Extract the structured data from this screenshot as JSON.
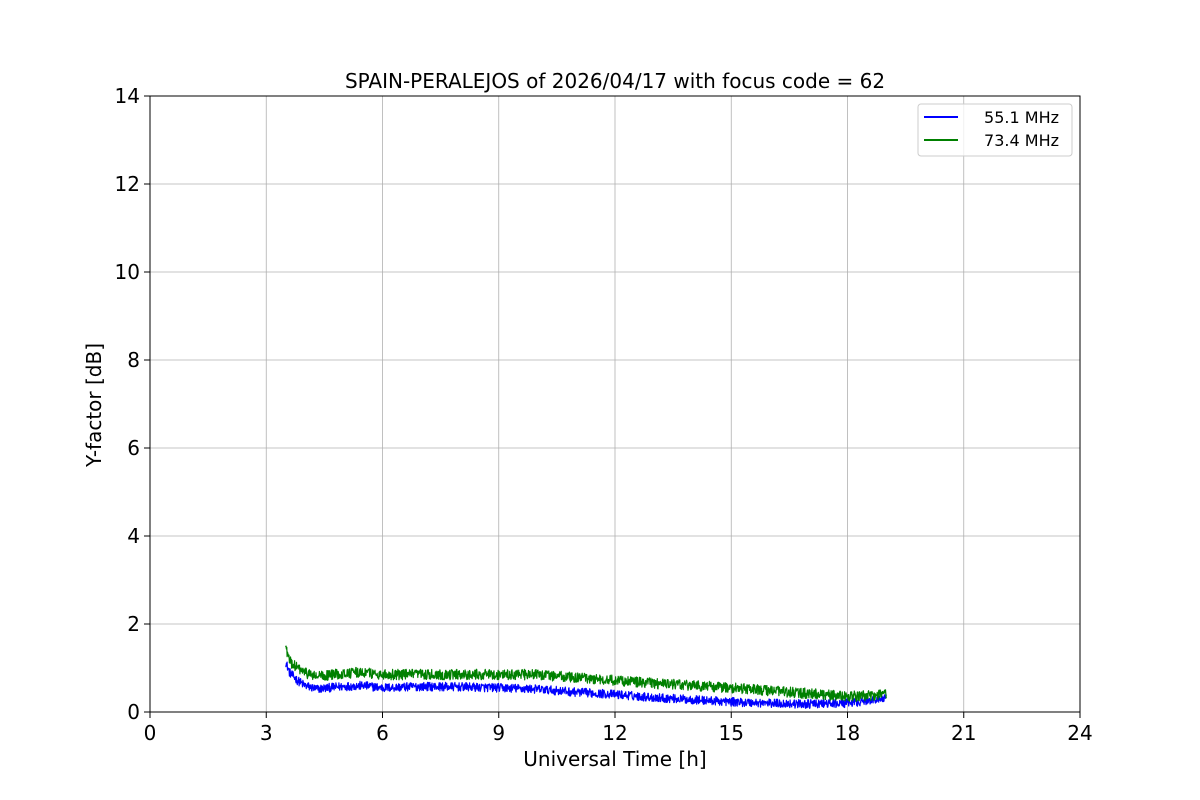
{
  "chart_data": {
    "type": "line",
    "title": "SPAIN-PERALEJOS of 2026/04/17 with focus code = 62",
    "xlabel": "Universal Time [h]",
    "ylabel": "Y-factor [dB]",
    "xlim": [
      0,
      24
    ],
    "ylim": [
      0,
      14
    ],
    "xticks": [
      0,
      3,
      6,
      9,
      12,
      15,
      18,
      21,
      24
    ],
    "yticks": [
      0,
      2,
      4,
      6,
      8,
      10,
      12,
      14
    ],
    "xtick_labels": [
      "0",
      "3",
      "6",
      "9",
      "12",
      "15",
      "18",
      "21",
      "24"
    ],
    "ytick_labels": [
      "0",
      "2",
      "4",
      "6",
      "8",
      "10",
      "12",
      "14"
    ],
    "grid": true,
    "legend_position": "top-right",
    "series": [
      {
        "name": "55.1 MHz",
        "color": "#0000ff",
        "noise": 0.1,
        "x": [
          3.5,
          3.6,
          3.8,
          4.0,
          4.3,
          4.7,
          5.0,
          5.5,
          6.0,
          7.0,
          8.0,
          9.0,
          10.0,
          11.0,
          12.0,
          13.0,
          14.0,
          15.0,
          16.0,
          17.0,
          18.0,
          19.0
        ],
        "y": [
          1.15,
          0.9,
          0.72,
          0.6,
          0.52,
          0.56,
          0.58,
          0.6,
          0.55,
          0.58,
          0.57,
          0.55,
          0.52,
          0.45,
          0.4,
          0.33,
          0.28,
          0.23,
          0.2,
          0.18,
          0.2,
          0.32
        ]
      },
      {
        "name": "73.4 MHz",
        "color": "#008000",
        "noise": 0.12,
        "x": [
          3.5,
          3.6,
          3.8,
          4.0,
          4.3,
          4.7,
          5.0,
          5.5,
          6.0,
          7.0,
          8.0,
          9.0,
          10.0,
          11.0,
          12.0,
          13.0,
          14.0,
          15.0,
          16.0,
          17.0,
          18.0,
          19.0
        ],
        "y": [
          1.5,
          1.15,
          1.0,
          0.9,
          0.8,
          0.85,
          0.88,
          0.9,
          0.85,
          0.85,
          0.85,
          0.85,
          0.85,
          0.78,
          0.72,
          0.65,
          0.6,
          0.55,
          0.48,
          0.42,
          0.35,
          0.4
        ]
      }
    ]
  }
}
